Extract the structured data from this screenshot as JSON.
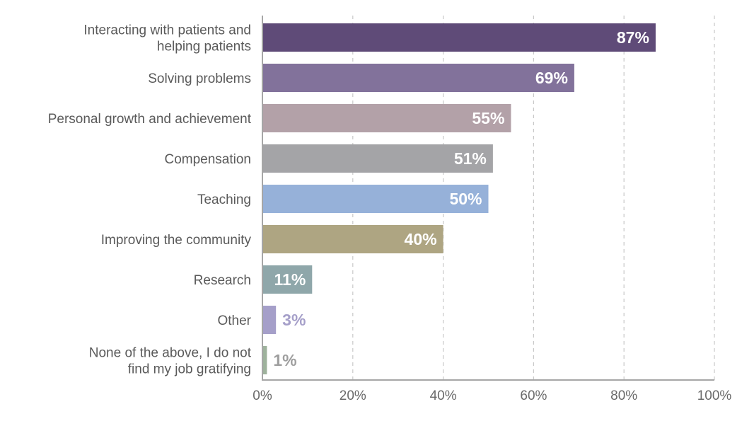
{
  "chart_data": {
    "type": "bar",
    "orientation": "horizontal",
    "categories": [
      [
        "Interacting with patients and",
        "helping patients"
      ],
      [
        "Solving problems"
      ],
      [
        "Personal growth and achievement"
      ],
      [
        "Compensation"
      ],
      [
        "Teaching"
      ],
      [
        "Improving the community"
      ],
      [
        "Research"
      ],
      [
        "Other"
      ],
      [
        "None of the above, I do not",
        "find my job gratifying"
      ]
    ],
    "values": [
      87,
      69,
      55,
      51,
      50,
      40,
      11,
      3,
      1
    ],
    "value_labels": [
      "87%",
      "69%",
      "55%",
      "51%",
      "50%",
      "40%",
      "11%",
      "3%",
      "1%"
    ],
    "colors": [
      "#5f4b78",
      "#82729b",
      "#b3a1a8",
      "#a4a4a7",
      "#96b1d9",
      "#aea582",
      "#8fa7aa",
      "#a59fc9",
      "#9eb29c"
    ],
    "label_colors": [
      "#ffffff",
      "#ffffff",
      "#ffffff",
      "#ffffff",
      "#ffffff",
      "#ffffff",
      "#ffffff",
      "#a59fc9",
      "#9e9e9e"
    ],
    "label_inside": [
      true,
      true,
      true,
      true,
      true,
      true,
      true,
      false,
      false
    ],
    "xlim": [
      0,
      100
    ],
    "xticks": [
      0,
      20,
      40,
      60,
      80,
      100
    ],
    "xtick_labels": [
      "0%",
      "20%",
      "40%",
      "60%",
      "80%",
      "100%"
    ],
    "grid": true,
    "title": "",
    "xlabel": "",
    "ylabel": ""
  }
}
